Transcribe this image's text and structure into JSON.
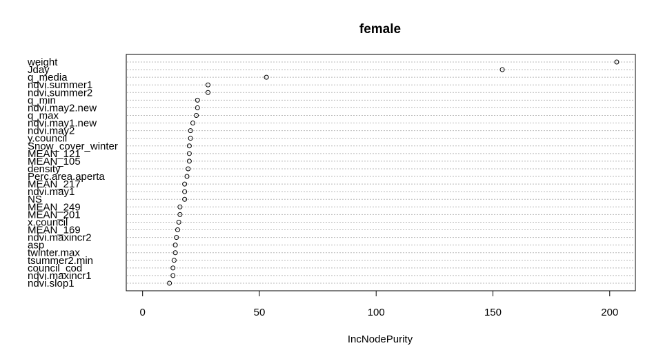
{
  "chart_data": {
    "type": "scatter",
    "title": "female",
    "xlabel": "IncNodePurity",
    "ylabel": "",
    "xlim": [
      -7,
      211
    ],
    "xticks": [
      0,
      50,
      100,
      150,
      200
    ],
    "grid": true,
    "categories": [
      "weight",
      "Jday",
      "q_media",
      "ndvi.summer1",
      "ndvi.summer2",
      "q_min",
      "ndvi.may2.new",
      "q_max",
      "ndvi.may1.new",
      "ndvi.may2",
      "y.council",
      "Snow_cover_winter",
      "MEAN_121",
      "MEAN_105",
      "density",
      "Perc.area.aperta",
      "MEAN_217",
      "ndvi.may1",
      "NS",
      "MEAN_249",
      "MEAN_201",
      "x.council",
      "MEAN_169",
      "ndvi.maxincr2",
      "asp",
      "twinter.max",
      "tsummer2.min",
      "council_cod",
      "ndvi.maxincr1",
      "ndvi.slop1"
    ],
    "values": [
      203,
      154,
      53,
      28,
      28,
      23.5,
      23.5,
      23,
      21.5,
      20.5,
      20.5,
      20,
      20,
      20,
      19.5,
      19,
      18,
      18,
      18,
      16,
      16,
      15.5,
      15,
      14.5,
      14,
      14,
      13.5,
      13,
      13,
      11.5
    ]
  }
}
